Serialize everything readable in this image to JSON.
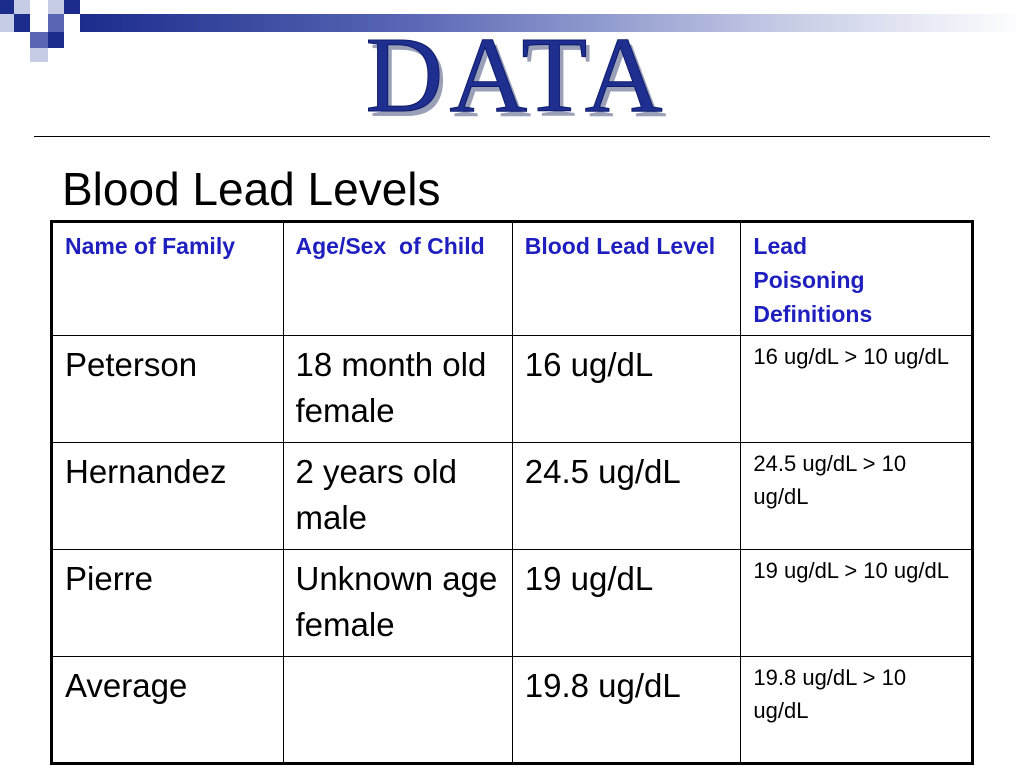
{
  "slide": {
    "title": "DATA",
    "subtitle": "Blood Lead Levels",
    "colors": {
      "title": "#1f2f8f",
      "header_text": "#1f1fbf",
      "accent_bar": "#1c2c8c"
    }
  },
  "table": {
    "headers": [
      "Name of Family",
      "Age/Sex  of Child",
      "Blood Lead Level",
      "Lead Poisoning Definitions"
    ],
    "rows": [
      {
        "family": "Peterson",
        "age_sex": "18 month old female",
        "level": "16 ug/dL",
        "definition": "16 ug/dL > 10 ug/dL"
      },
      {
        "family": "Hernandez",
        "age_sex": "2 years old male",
        "level": "24.5 ug/dL",
        "definition": "24.5 ug/dL > 10 ug/dL"
      },
      {
        "family": "Pierre",
        "age_sex": "Unknown age female",
        "level": "19 ug/dL",
        "definition": "19 ug/dL > 10 ug/dL"
      },
      {
        "family": "Average",
        "age_sex": "",
        "level": "19.8 ug/dL",
        "definition": "19.8 ug/dL > 10 ug/dL"
      }
    ]
  }
}
